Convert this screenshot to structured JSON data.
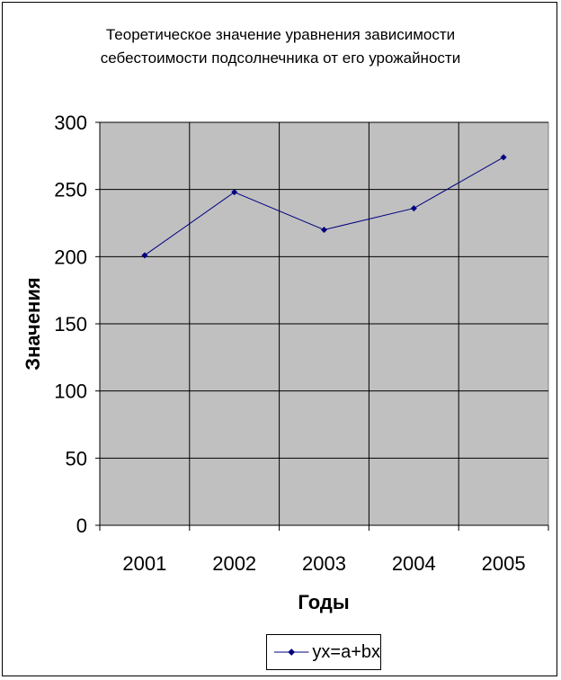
{
  "chart_data": {
    "type": "line",
    "title": [
      "Теоретическое значение уравнения зависимости",
      "себестоимости подсолнечника от его урожайности"
    ],
    "xlabel": "Годы",
    "ylabel": "Значения",
    "categories": [
      "2001",
      "2002",
      "2003",
      "2004",
      "2005"
    ],
    "ylim": [
      0,
      300
    ],
    "yticks": [
      0,
      50,
      100,
      150,
      200,
      250,
      300
    ],
    "grid": true,
    "legend_position": "bottom",
    "series": [
      {
        "name": "yx=a+bx",
        "values": [
          201,
          248,
          220,
          236,
          274
        ],
        "color": "#000080",
        "marker": "diamond"
      }
    ],
    "plot_background": "#c0c0c0"
  }
}
